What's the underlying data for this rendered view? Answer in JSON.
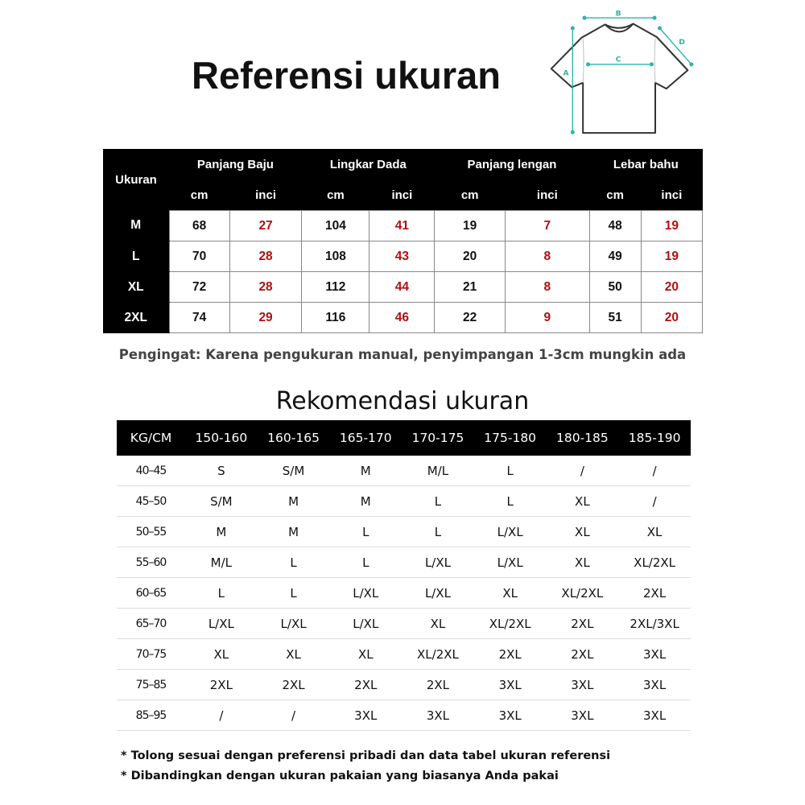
{
  "title": "Referensi ukuran",
  "diagram": {
    "labels": [
      "A",
      "B",
      "C",
      "D"
    ],
    "accent_color": "#2bb5a8"
  },
  "size_table": {
    "size_header": "Ukuran",
    "groups": [
      "Panjang Baju",
      "Lingkar Dada",
      "Panjang lengan",
      "Lebar bahu"
    ],
    "units": [
      "cm",
      "inci"
    ],
    "rows": [
      {
        "size": "M",
        "values": [
          "68",
          "27",
          "104",
          "41",
          "19",
          "7",
          "48",
          "19"
        ]
      },
      {
        "size": "L",
        "values": [
          "70",
          "28",
          "108",
          "43",
          "20",
          "8",
          "49",
          "19"
        ]
      },
      {
        "size": "XL",
        "values": [
          "72",
          "28",
          "112",
          "44",
          "21",
          "8",
          "50",
          "20"
        ]
      },
      {
        "size": "2XL",
        "values": [
          "74",
          "29",
          "116",
          "46",
          "22",
          "9",
          "51",
          "20"
        ]
      }
    ],
    "inch_color": "#b10f0f"
  },
  "note": "Pengingat: Karena pengukuran manual, penyimpangan 1-3cm mungkin ada",
  "recommend": {
    "title": "Rekomendasi ukuran",
    "headers": [
      "KG/CM",
      "150-160",
      "160-165",
      "165-170",
      "170-175",
      "175-180",
      "180-185",
      "185-190"
    ],
    "rows": [
      [
        "40–45",
        "S",
        "S/M",
        "M",
        "M/L",
        "L",
        "/",
        "/"
      ],
      [
        "45–50",
        "S/M",
        "M",
        "M",
        "L",
        "L",
        "XL",
        "/"
      ],
      [
        "50–55",
        "M",
        "M",
        "L",
        "L",
        "L/XL",
        "XL",
        "XL"
      ],
      [
        "55–60",
        "M/L",
        "L",
        "L",
        "L/XL",
        "L/XL",
        "XL",
        "XL/2XL"
      ],
      [
        "60–65",
        "L",
        "L",
        "L/XL",
        "L/XL",
        "XL",
        "XL/2XL",
        "2XL"
      ],
      [
        "65–70",
        "L/XL",
        "L/XL",
        "L/XL",
        "XL",
        "XL/2XL",
        "2XL",
        "2XL/3XL"
      ],
      [
        "70–75",
        "XL",
        "XL",
        "XL",
        "XL/2XL",
        "2XL",
        "2XL",
        "3XL"
      ],
      [
        "75–85",
        "2XL",
        "2XL",
        "2XL",
        "2XL",
        "3XL",
        "3XL",
        "3XL"
      ],
      [
        "85–95",
        "/",
        "/",
        "3XL",
        "3XL",
        "3XL",
        "3XL",
        "3XL"
      ]
    ]
  },
  "footnotes": [
    "* Tolong sesuai dengan preferensi pribadi dan data tabel ukuran referensi",
    "* Dibandingkan dengan ukuran pakaian yang biasanya Anda pakai"
  ]
}
